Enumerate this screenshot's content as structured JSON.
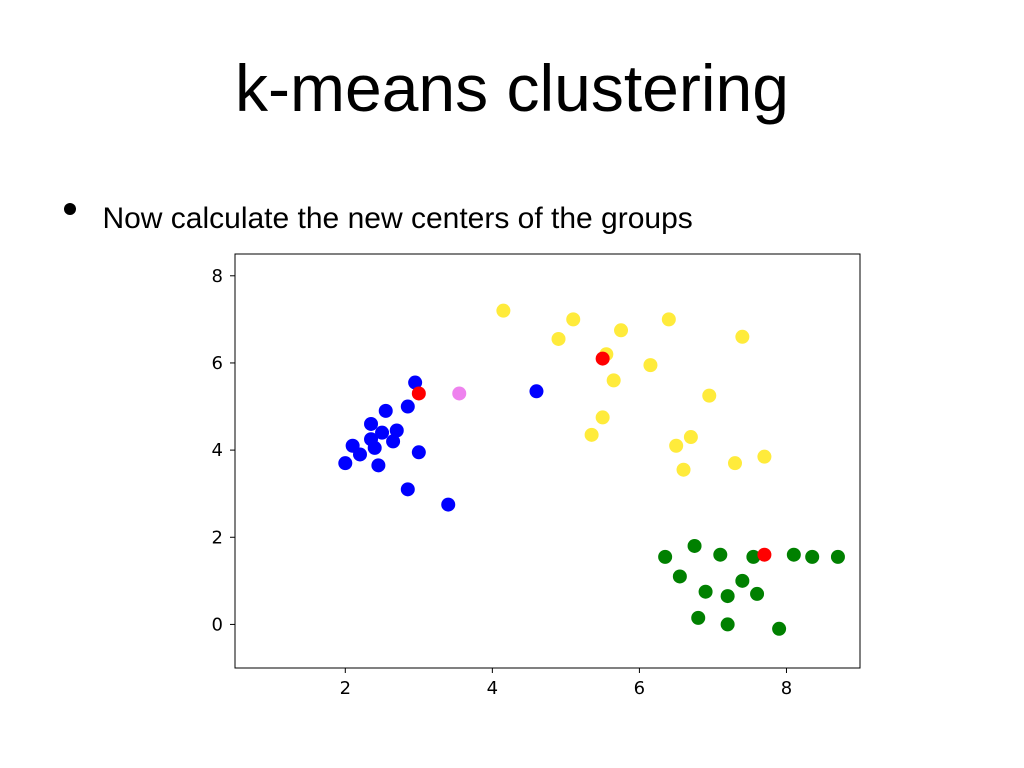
{
  "title": "k-means clustering",
  "bullet_text": "Now calculate the new centers of the groups",
  "chart": {
    "type": "scatter",
    "background_color": "#ffffff",
    "border_color": "#000000",
    "xlim": [
      0.5,
      9.0
    ],
    "ylim": [
      -1.0,
      8.5
    ],
    "xticks": [
      2,
      4,
      6,
      8
    ],
    "yticks": [
      0,
      2,
      4,
      6,
      8
    ],
    "tick_fontsize": 18,
    "marker_radius": 7,
    "colors": {
      "blue": "#0000ff",
      "yellow": "#ffeb3b",
      "green": "#008000",
      "red": "#ff0000",
      "violet": "#ee82ee"
    },
    "points": {
      "blue": [
        [
          2.0,
          3.7
        ],
        [
          2.1,
          4.1
        ],
        [
          2.2,
          3.9
        ],
        [
          2.35,
          4.6
        ],
        [
          2.35,
          4.25
        ],
        [
          2.4,
          4.05
        ],
        [
          2.45,
          3.65
        ],
        [
          2.5,
          4.4
        ],
        [
          2.55,
          4.9
        ],
        [
          2.65,
          4.2
        ],
        [
          2.7,
          4.45
        ],
        [
          2.85,
          5.0
        ],
        [
          2.85,
          3.1
        ],
        [
          2.95,
          5.55
        ],
        [
          3.0,
          3.95
        ],
        [
          3.4,
          2.75
        ],
        [
          4.6,
          5.35
        ]
      ],
      "yellow": [
        [
          4.15,
          7.2
        ],
        [
          4.9,
          6.55
        ],
        [
          5.1,
          7.0
        ],
        [
          5.35,
          4.35
        ],
        [
          5.5,
          4.75
        ],
        [
          5.55,
          6.2
        ],
        [
          5.65,
          5.6
        ],
        [
          5.75,
          6.75
        ],
        [
          6.15,
          5.95
        ],
        [
          6.4,
          7.0
        ],
        [
          6.5,
          4.1
        ],
        [
          6.6,
          3.55
        ],
        [
          6.7,
          4.3
        ],
        [
          6.95,
          5.25
        ],
        [
          7.3,
          3.7
        ],
        [
          7.4,
          6.6
        ],
        [
          7.7,
          3.85
        ]
      ],
      "green": [
        [
          6.35,
          1.55
        ],
        [
          6.55,
          1.1
        ],
        [
          6.75,
          1.8
        ],
        [
          6.8,
          0.15
        ],
        [
          6.9,
          0.75
        ],
        [
          7.1,
          1.6
        ],
        [
          7.2,
          0.65
        ],
        [
          7.2,
          0.0
        ],
        [
          7.4,
          1.0
        ],
        [
          7.55,
          1.55
        ],
        [
          7.6,
          0.7
        ],
        [
          7.9,
          -0.1
        ],
        [
          8.1,
          1.6
        ],
        [
          8.35,
          1.55
        ],
        [
          8.7,
          1.55
        ]
      ],
      "red": [
        [
          3.0,
          5.3
        ],
        [
          5.5,
          6.1
        ],
        [
          7.7,
          1.6
        ]
      ],
      "violet": [
        [
          3.55,
          5.3
        ]
      ]
    }
  }
}
